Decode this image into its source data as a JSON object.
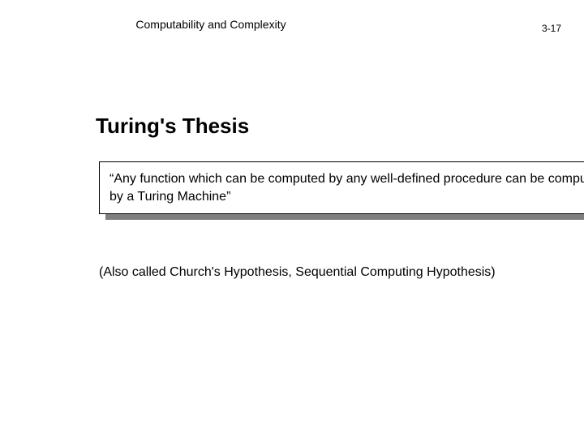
{
  "header": {
    "title": "Computability and Complexity",
    "page_number": "3-17"
  },
  "slide": {
    "title": "Turing's  Thesis",
    "quote": "“Any function which can be computed by any well-defined procedure can be computed by a Turing Machine”",
    "note": "(Also called Church's Hypothesis, Sequential Computing Hypothesis)"
  },
  "styling": {
    "background_color": "#ffffff",
    "text_color": "#000000",
    "shadow_color": "#7f7f7f",
    "header_fontsize": 14,
    "page_number_fontsize": 12,
    "title_fontsize": 26,
    "body_fontsize": 16,
    "quote_box_border": "#000000"
  }
}
